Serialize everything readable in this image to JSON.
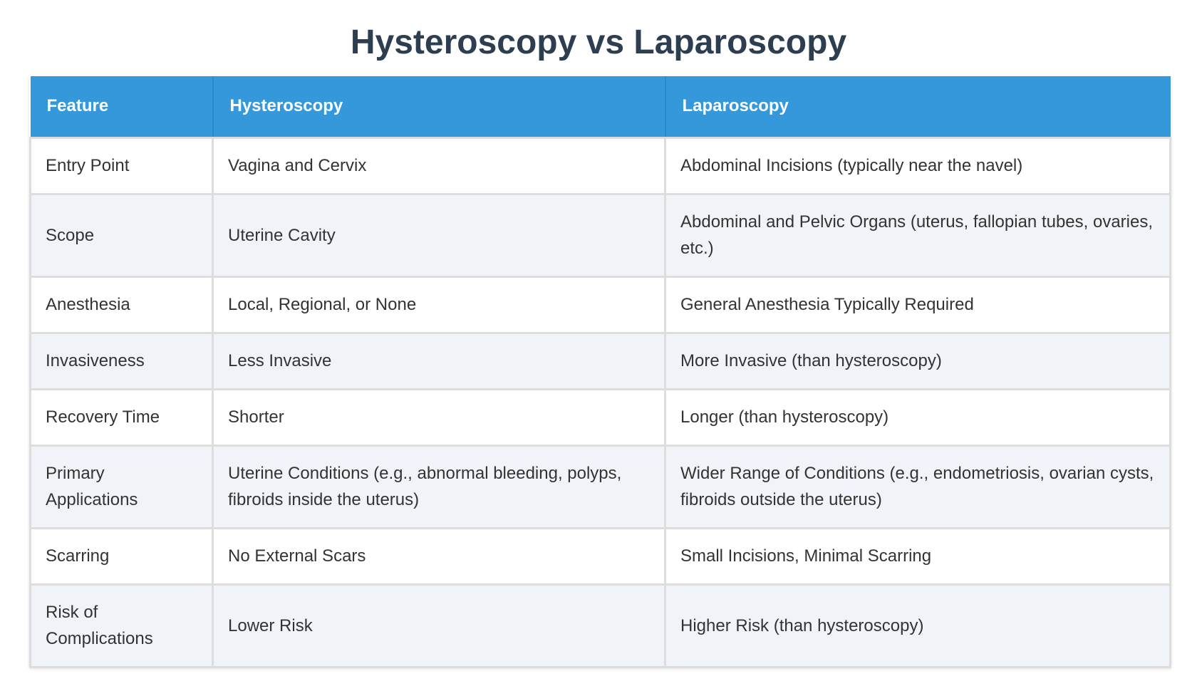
{
  "title": "Hysteroscopy vs Laparoscopy",
  "table": {
    "headers": [
      "Feature",
      "Hysteroscopy",
      "Laparoscopy"
    ],
    "rows": [
      [
        "Entry Point",
        "Vagina and Cervix",
        "Abdominal Incisions (typically near the navel)"
      ],
      [
        "Scope",
        "Uterine Cavity",
        "Abdominal and Pelvic Organs (uterus, fallopian tubes, ovaries, etc.)"
      ],
      [
        "Anesthesia",
        "Local, Regional, or None",
        "General Anesthesia Typically Required"
      ],
      [
        "Invasiveness",
        "Less Invasive",
        "More Invasive (than hysteroscopy)"
      ],
      [
        "Recovery Time",
        "Shorter",
        "Longer (than hysteroscopy)"
      ],
      [
        "Primary Applications",
        "Uterine Conditions (e.g., abnormal bleeding, polyps, fibroids inside the uterus)",
        "Wider Range of Conditions (e.g., endometriosis, ovarian cysts, fibroids outside the uterus)"
      ],
      [
        "Scarring",
        "No External Scars",
        "Small Incisions, Minimal Scarring"
      ],
      [
        "Risk of Complications",
        "Lower Risk",
        "Higher Risk (than hysteroscopy)"
      ]
    ]
  },
  "colors": {
    "header_bg": "#3498db",
    "title_text": "#2c3e50",
    "zebra_row": "#f0f4f9"
  }
}
